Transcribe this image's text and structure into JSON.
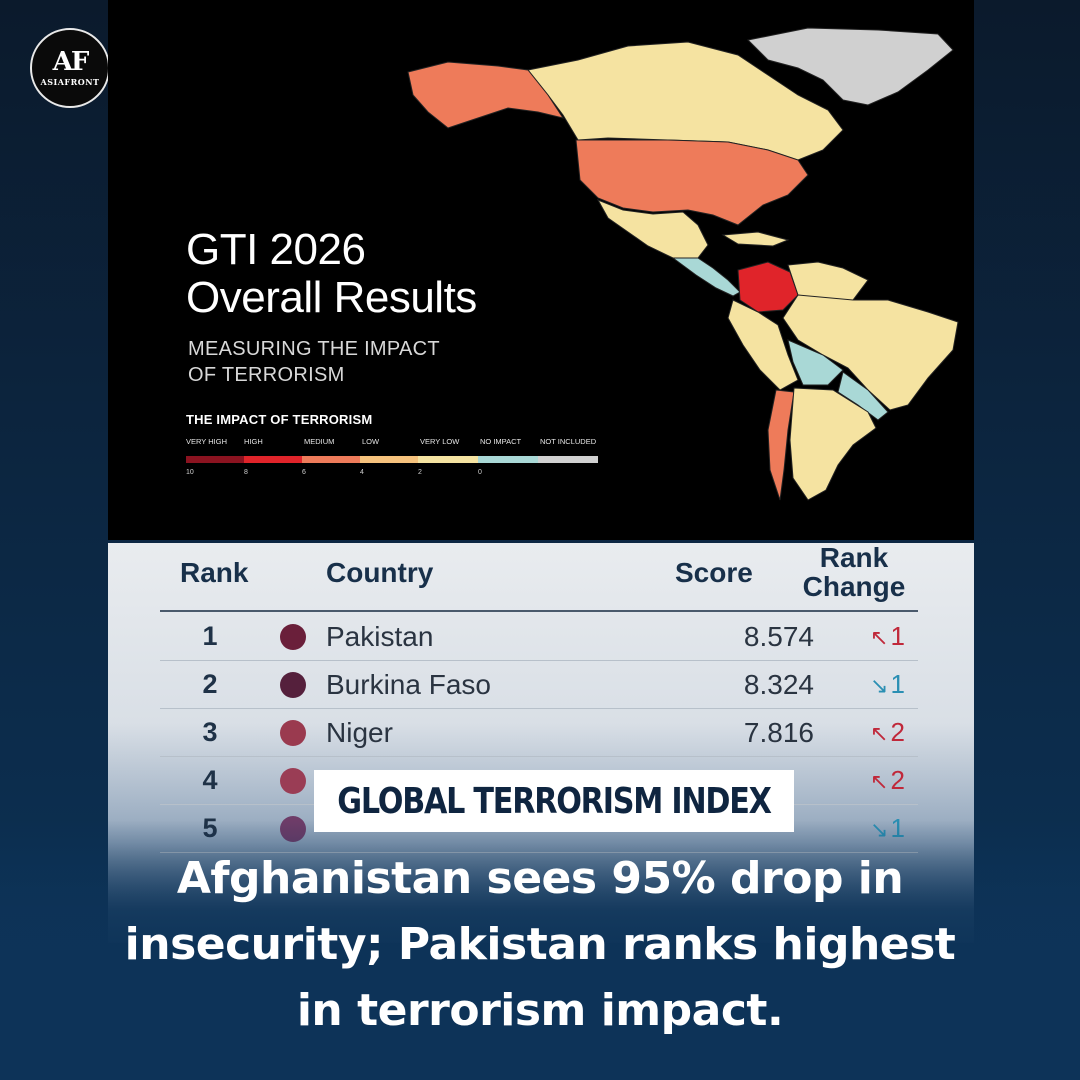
{
  "logo": {
    "mark": "AF",
    "word": "ASIAFRONT"
  },
  "map": {
    "title_line1": "GTI 2026",
    "title_line2": "Overall Results",
    "subtitle_line1": "MEASURING THE IMPACT",
    "subtitle_line2": "OF TERRORISM",
    "legend": {
      "title": "THE IMPACT OF TERRORISM",
      "categories": [
        "VERY HIGH",
        "HIGH",
        "MEDIUM",
        "LOW",
        "VERY LOW",
        "NO IMPACT",
        "NOT INCLUDED"
      ],
      "ticks": [
        "10",
        "8",
        "6",
        "4",
        "2",
        "0"
      ],
      "colors": [
        "#8b1320",
        "#e0242a",
        "#ee7b5a",
        "#f6c27d",
        "#f5e3a1",
        "#a9d8d6",
        "#d0d0d0"
      ]
    }
  },
  "table": {
    "headers": {
      "rank": "Rank",
      "country": "Country",
      "score": "Score",
      "change_line1": "Rank",
      "change_line2": "Change"
    },
    "rows": [
      {
        "rank": "1",
        "country": "Pakistan",
        "score": "8.574",
        "change": "1",
        "direction": "up",
        "dot_color": "#6a1f3a"
      },
      {
        "rank": "2",
        "country": "Burkina Faso",
        "score": "8.324",
        "change": "1",
        "direction": "down",
        "dot_color": "#55203c"
      },
      {
        "rank": "3",
        "country": "Niger",
        "score": "7.816",
        "change": "2",
        "direction": "up",
        "dot_color": "#9a3a4f"
      },
      {
        "rank": "4",
        "country": "",
        "score": "",
        "change": "2",
        "direction": "up",
        "dot_color": "#9a3d55"
      },
      {
        "rank": "5",
        "country": "",
        "score": "",
        "change": "1",
        "direction": "down",
        "dot_color": "#6e3c68"
      }
    ],
    "colors": {
      "up": "#c0283a",
      "down": "#2a8fb3"
    }
  },
  "badge": "GLOBAL TERRORISM INDEX",
  "headline": {
    "line1": "Afghanistan sees 95% drop in",
    "line2": "insecurity; Pakistan ranks highest",
    "line3": "in terrorism impact."
  }
}
